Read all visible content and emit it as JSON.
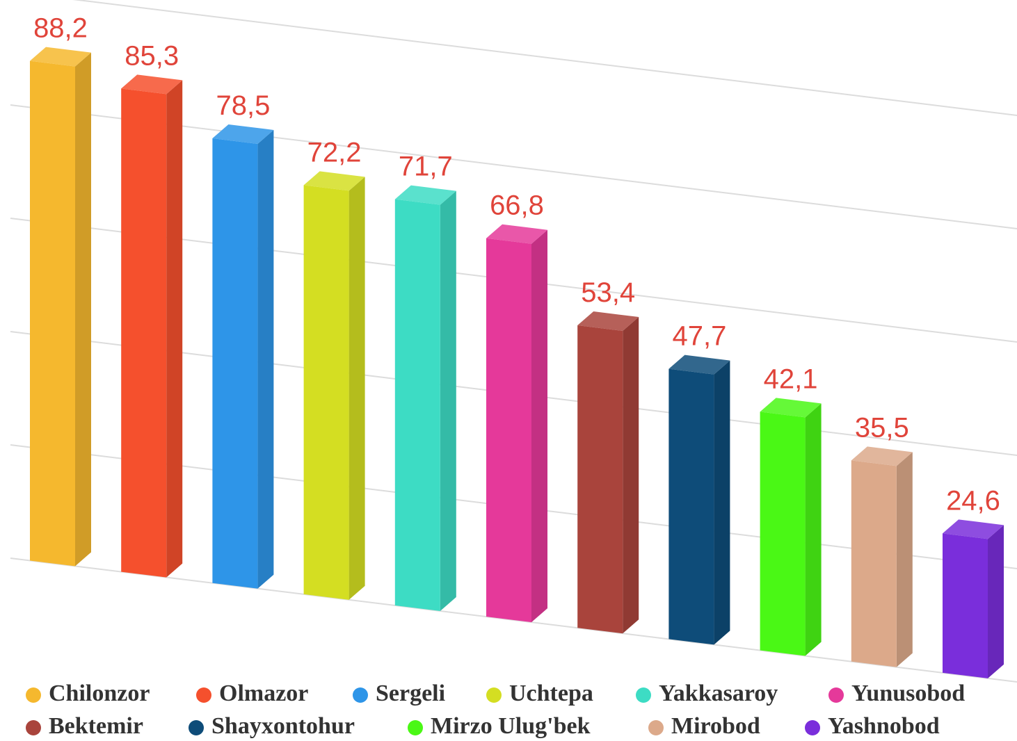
{
  "chart_data": {
    "type": "bar3d",
    "categories": [
      "Chilonzor",
      "Olmazor",
      "Sergeli",
      "Uchtepa",
      "Yakkasaroy",
      "Yunusobod",
      "Bektemir",
      "Shayxontohur",
      "Mirzo Ulug'bek",
      "Mirobod",
      "Yashnobod"
    ],
    "values": [
      88.2,
      85.3,
      78.5,
      72.2,
      71.7,
      66.8,
      53.4,
      47.7,
      42.1,
      35.5,
      24.6
    ],
    "value_labels": [
      "88,2",
      "85,3",
      "78,5",
      "72,2",
      "71,7",
      "66,8",
      "53,4",
      "47,7",
      "42,1",
      "35,5",
      "24,6"
    ],
    "colors": [
      "#f5b82e",
      "#f5502d",
      "#2e95e8",
      "#d4de22",
      "#3ddcc4",
      "#e5399a",
      "#a9443c",
      "#0e4c79",
      "#4af815",
      "#dca98a",
      "#7a2edb"
    ],
    "ylim": [
      0,
      100
    ],
    "yticks": [
      0,
      20,
      40,
      60,
      80,
      100
    ],
    "grid": true,
    "legend": "bottom"
  }
}
